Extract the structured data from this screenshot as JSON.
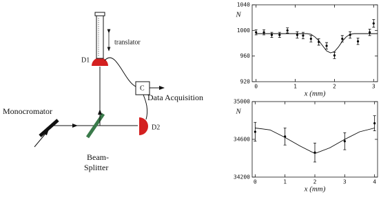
{
  "diagram": {
    "labels": {
      "translator": "translator",
      "d1": "D1",
      "c": "C",
      "acquisition": "Data Acquisition",
      "monochromator": "Monocromator",
      "d2": "D2",
      "splitter_1": "Beam-",
      "splitter_2": "Splitter"
    }
  },
  "chart_data": [
    {
      "type": "scatter",
      "xlabel": "x (mm)",
      "ylabel": "N",
      "xlim": [
        -0.1,
        3.1
      ],
      "ylim": [
        920,
        1040
      ],
      "xticks": [
        0,
        1,
        2,
        3
      ],
      "yticks": [
        920,
        960,
        1000,
        1040
      ],
      "series": [
        {
          "color": "#000000",
          "x": [
            0,
            0.2,
            0.4,
            0.6,
            0.8,
            1.05,
            1.2,
            1.4,
            1.6,
            1.8,
            2.0,
            2.2,
            2.4,
            2.6,
            2.9,
            3.0
          ],
          "values": [
            997,
            997,
            993,
            993,
            1000,
            993,
            992,
            987,
            982,
            976,
            961,
            987,
            993,
            983,
            997,
            1011
          ],
          "errors": [
            4,
            4,
            4,
            4,
            4,
            5,
            5,
            5,
            5,
            5,
            5,
            5,
            5,
            5,
            5,
            6
          ]
        },
        {
          "color": "#000000",
          "x": [
            0,
            0.4,
            0.8,
            1.2,
            1.3,
            1.4,
            1.5,
            1.6,
            1.7,
            1.8,
            1.9,
            2.0,
            2.1,
            2.2,
            2.3,
            2.4,
            2.5,
            2.8,
            3.1
          ],
          "values": [
            995,
            995,
            995,
            995,
            995,
            994,
            990,
            984,
            976,
            968,
            965,
            967,
            974,
            983,
            990,
            994,
            995,
            995,
            995
          ]
        }
      ]
    },
    {
      "type": "scatter",
      "xlabel": "x (mm)",
      "ylabel": "N",
      "xlim": [
        -0.1,
        4.1
      ],
      "ylim": [
        34200,
        35000
      ],
      "xticks": [
        0,
        1,
        2,
        3,
        4
      ],
      "yticks": [
        34200,
        34600,
        35000
      ],
      "series": [
        {
          "color": "#000000",
          "x": [
            0,
            1,
            2,
            3,
            4
          ],
          "values": [
            34680,
            34630,
            34460,
            34580,
            34770
          ],
          "errors": [
            100,
            90,
            100,
            90,
            80
          ]
        },
        {
          "color": "#000000",
          "x": [
            0,
            0.5,
            1,
            1.5,
            2,
            2.5,
            3,
            3.5,
            4
          ],
          "values": [
            34720,
            34700,
            34620,
            34530,
            34450,
            34510,
            34600,
            34680,
            34720
          ]
        }
      ]
    }
  ]
}
